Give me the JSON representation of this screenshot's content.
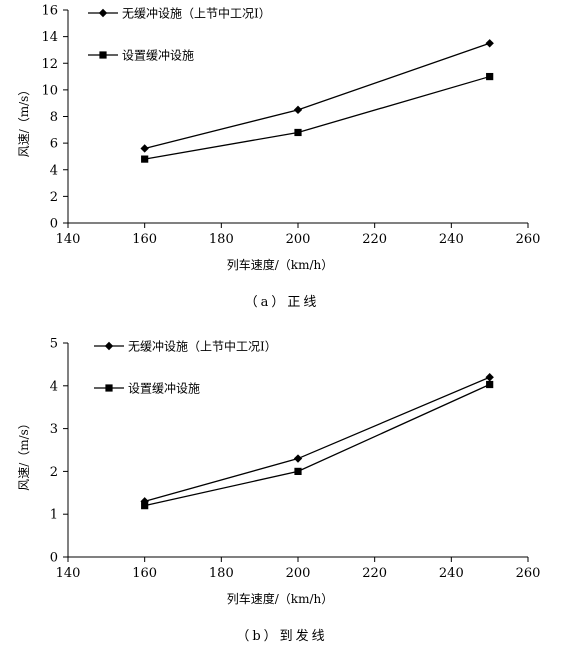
{
  "chart_data": [
    {
      "type": "line",
      "x": [
        160,
        200,
        250
      ],
      "series": [
        {
          "name": "无缓冲设施（上节中工况Ⅰ）",
          "marker": "diamond",
          "values": [
            5.6,
            8.5,
            13.5
          ]
        },
        {
          "name": "设置缓冲设施",
          "marker": "square",
          "values": [
            4.8,
            6.8,
            11.0
          ]
        }
      ],
      "xlabel": "列车速度/（km/h）",
      "ylabel": "风速/（m/s）",
      "xlim": [
        140,
        260
      ],
      "ylim": [
        0,
        16
      ],
      "xticks": [
        "140",
        "160",
        "180",
        "200",
        "220",
        "240",
        "260"
      ],
      "yticks": [
        "0",
        "2",
        "4",
        "6",
        "8",
        "10",
        "12",
        "14",
        "16"
      ],
      "caption": "（a）正线",
      "grid": false,
      "legend_position": "top-left"
    },
    {
      "type": "line",
      "x": [
        160,
        200,
        250
      ],
      "series": [
        {
          "name": "无缓冲设施（上节中工况Ⅰ）",
          "marker": "diamond",
          "values": [
            1.3,
            2.3,
            4.2
          ]
        },
        {
          "name": "设置缓冲设施",
          "marker": "square",
          "values": [
            1.2,
            2.0,
            4.03
          ]
        }
      ],
      "xlabel": "列车速度/（km/h）",
      "ylabel": "风速/（m/s）",
      "xlim": [
        140,
        260
      ],
      "ylim": [
        0,
        5
      ],
      "xticks": [
        "140",
        "160",
        "180",
        "200",
        "220",
        "240",
        "260"
      ],
      "yticks": [
        "0",
        "1",
        "2",
        "3",
        "4",
        "5"
      ],
      "caption": "（b）到发线",
      "grid": false,
      "legend_position": "top-left"
    }
  ],
  "colors": {
    "line": "#000000",
    "background": "#ffffff"
  }
}
